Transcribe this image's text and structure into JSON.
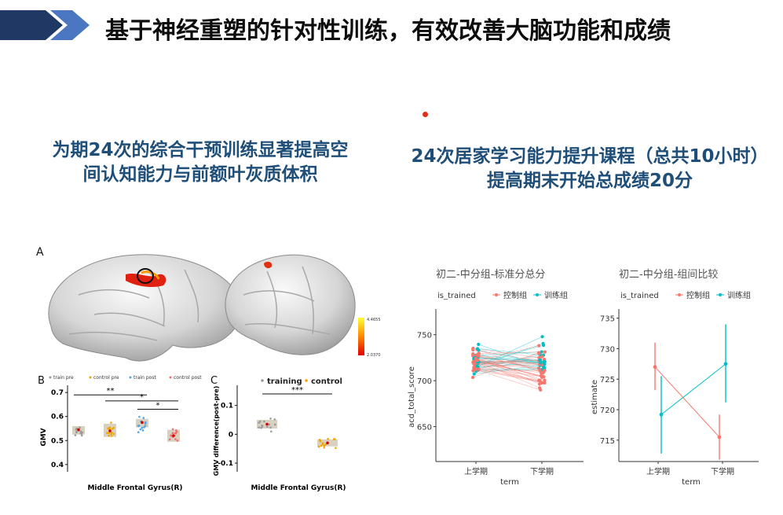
{
  "header": {
    "title": "基于神经重塑的针对性训练，有效改善大脑功能和成绩"
  },
  "left": {
    "heading_line1": "为期24次的综合干预训练显著提高空",
    "heading_line2": "间认知能力与前额叶灰质体积",
    "panel_a_label": "A",
    "colorbar": {
      "max": "4.4655",
      "min": "2.0370"
    }
  },
  "right": {
    "heading_line1": "24次居家学习能力提升课程（总共10小时）",
    "heading_line2": "提高期末开始总成绩20分"
  },
  "colors": {
    "train": "#f8766d",
    "control": "#00bfc4",
    "navy": "#1f4e79",
    "pre_grey": "#9a9a9a",
    "ctrl_pre": "#f0a500",
    "train_post": "#4da6e8",
    "ctrl_post": "#f26d6d"
  },
  "chart_data": [
    {
      "id": "B",
      "type": "scatter",
      "panel_label": "B",
      "legend": [
        "train pre",
        "control pre",
        "train post",
        "control post"
      ],
      "ylabel": "GMV",
      "xlabel": "Middle Frontal Gyrus(R)",
      "ylim": [
        0.37,
        0.73
      ],
      "yticks": [
        0.4,
        0.5,
        0.6,
        0.7
      ],
      "groups": [
        {
          "name": "train pre",
          "mean": 0.545,
          "box": [
            0.525,
            0.56
          ]
        },
        {
          "name": "control pre",
          "mean": 0.54,
          "box": [
            0.515,
            0.57
          ]
        },
        {
          "name": "train post",
          "mean": 0.575,
          "box": [
            0.555,
            0.59
          ]
        },
        {
          "name": "control post",
          "mean": 0.52,
          "box": [
            0.495,
            0.545
          ]
        }
      ],
      "significance": [
        {
          "from": 0,
          "to": 2,
          "label": "**",
          "y": 0.69
        },
        {
          "from": 1,
          "to": 3,
          "label": "*",
          "y": 0.665
        },
        {
          "from": 2,
          "to": 3,
          "label": "*",
          "y": 0.63
        }
      ]
    },
    {
      "id": "C",
      "type": "scatter",
      "panel_label": "C",
      "legend": [
        "training",
        "control"
      ],
      "ylabel": "GMV difference(post-pre)",
      "xlabel": "Middle Frontal Gyrus(R)",
      "ylim": [
        -0.13,
        0.17
      ],
      "yticks": [
        -0.1,
        0,
        0.1
      ],
      "groups": [
        {
          "name": "training",
          "mean": 0.035,
          "box": [
            0.02,
            0.05
          ]
        },
        {
          "name": "control",
          "mean": -0.03,
          "box": [
            -0.042,
            -0.018
          ]
        }
      ],
      "significance": [
        {
          "from": 0,
          "to": 1,
          "label": "***",
          "y": 0.14
        }
      ]
    },
    {
      "id": "D",
      "type": "line",
      "title": "初二-中分组-标准分总分",
      "legend_title": "is_trained",
      "legend": [
        "控制组",
        "训练组"
      ],
      "xlabel": "term",
      "ylabel": "acd_total_score",
      "categories": [
        "上学期",
        "下学期"
      ],
      "ylim": [
        612,
        778
      ],
      "yticks": [
        650,
        700,
        750
      ]
    },
    {
      "id": "E",
      "type": "line",
      "title": "初二-中分组-组间比较",
      "legend_title": "is_trained",
      "legend": [
        "控制组",
        "训练组"
      ],
      "xlabel": "term",
      "ylabel": "estimate",
      "categories": [
        "上学期",
        "下学期"
      ],
      "ylim": [
        711.5,
        736.5
      ],
      "yticks": [
        715,
        720,
        725,
        730,
        735
      ],
      "series": [
        {
          "name": "控制组",
          "values": [
            727.0,
            715.5
          ],
          "ci": [
            [
              723.2,
              731.0
            ],
            [
              711.8,
              719.2
            ]
          ]
        },
        {
          "name": "训练组",
          "values": [
            719.2,
            727.5
          ],
          "ci": [
            [
              712.8,
              725.5
            ],
            [
              721.2,
              734.0
            ]
          ]
        }
      ]
    }
  ]
}
